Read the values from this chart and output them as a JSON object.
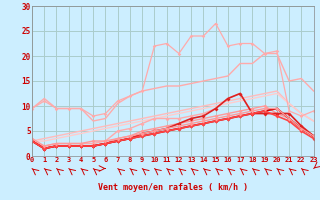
{
  "bg_color": "#cceeff",
  "grid_color": "#aacccc",
  "text_color": "#cc0000",
  "xlabel": "Vent moyen/en rafales ( km/h )",
  "x_values": [
    0,
    1,
    2,
    3,
    4,
    5,
    6,
    7,
    8,
    9,
    10,
    11,
    12,
    13,
    14,
    15,
    16,
    17,
    18,
    19,
    20,
    21,
    22,
    23
  ],
  "ylim": [
    0,
    30
  ],
  "xlim": [
    0,
    23
  ],
  "yticks": [
    0,
    5,
    10,
    15,
    20,
    25,
    30
  ],
  "lines": [
    {
      "color": "#ffaaaa",
      "lw": 1.0,
      "marker": null,
      "values": [
        9.5,
        11.5,
        9.5,
        9.5,
        9.5,
        7.0,
        7.5,
        10.5,
        12.0,
        13.0,
        13.5,
        14.0,
        14.0,
        14.5,
        15.0,
        15.5,
        16.0,
        18.5,
        18.5,
        20.5,
        20.5,
        15.0,
        15.5,
        13.0
      ]
    },
    {
      "color": "#ffbbbb",
      "lw": 1.0,
      "marker": null,
      "values": [
        3.0,
        3.5,
        4.0,
        4.5,
        5.0,
        5.5,
        6.0,
        6.5,
        7.0,
        7.5,
        8.0,
        8.5,
        9.0,
        9.5,
        10.0,
        10.5,
        11.0,
        11.5,
        12.0,
        12.5,
        13.0,
        10.5,
        8.5,
        7.0
      ]
    },
    {
      "color": "#ffcccc",
      "lw": 1.0,
      "marker": null,
      "values": [
        3.0,
        3.0,
        3.5,
        4.0,
        4.5,
        5.0,
        5.5,
        6.0,
        6.5,
        7.0,
        7.5,
        8.0,
        8.5,
        9.0,
        9.5,
        10.0,
        10.5,
        11.0,
        11.5,
        12.0,
        12.5,
        10.5,
        8.5,
        7.0
      ]
    },
    {
      "color": "#ffaaaa",
      "lw": 1.0,
      "marker": "D",
      "ms": 2.0,
      "values": [
        3.0,
        2.0,
        2.5,
        2.5,
        2.5,
        2.5,
        3.0,
        5.0,
        5.5,
        6.5,
        7.5,
        7.5,
        7.5,
        8.0,
        8.5,
        9.5,
        11.5,
        12.5,
        8.5,
        8.5,
        8.5,
        8.5,
        6.0,
        4.0
      ]
    },
    {
      "color": "#ff9999",
      "lw": 1.0,
      "marker": "D",
      "ms": 2.0,
      "values": [
        3.0,
        1.5,
        2.0,
        2.0,
        2.0,
        2.0,
        2.5,
        3.5,
        4.0,
        5.0,
        5.5,
        6.0,
        6.5,
        7.0,
        7.5,
        8.0,
        8.5,
        9.0,
        9.5,
        10.0,
        8.5,
        7.5,
        5.5,
        4.0
      ]
    },
    {
      "color": "#dd2222",
      "lw": 1.2,
      "marker": "D",
      "ms": 2.0,
      "values": [
        3.0,
        1.5,
        2.0,
        2.0,
        2.0,
        2.0,
        2.5,
        3.0,
        3.5,
        4.5,
        5.0,
        5.5,
        6.5,
        7.5,
        8.0,
        9.5,
        11.5,
        12.5,
        8.5,
        8.5,
        8.5,
        8.5,
        6.0,
        4.0
      ]
    },
    {
      "color": "#cc0000",
      "lw": 1.3,
      "marker": "D",
      "ms": 2.0,
      "values": [
        3.0,
        1.5,
        2.0,
        2.0,
        2.0,
        2.0,
        2.5,
        3.0,
        3.5,
        4.0,
        4.5,
        5.0,
        5.5,
        6.0,
        6.5,
        7.0,
        7.5,
        8.0,
        8.5,
        9.0,
        9.5,
        7.5,
        5.5,
        4.0
      ]
    },
    {
      "color": "#ff4444",
      "lw": 1.2,
      "marker": "D",
      "ms": 2.0,
      "values": [
        3.0,
        1.5,
        2.0,
        2.0,
        2.0,
        2.0,
        2.5,
        3.0,
        3.5,
        4.0,
        4.5,
        5.0,
        5.5,
        6.0,
        6.5,
        7.0,
        7.5,
        8.0,
        8.5,
        9.0,
        8.0,
        7.0,
        5.0,
        3.5
      ]
    },
    {
      "color": "#ff9999",
      "lw": 1.0,
      "marker": "D",
      "ms": 2.0,
      "values": [
        3.5,
        2.0,
        2.5,
        2.5,
        2.5,
        3.0,
        3.0,
        3.5,
        4.0,
        4.5,
        5.0,
        5.5,
        6.0,
        6.5,
        7.0,
        7.5,
        8.0,
        8.5,
        9.0,
        9.5,
        9.5,
        7.5,
        5.5,
        4.0
      ]
    },
    {
      "color": "#ffaaaa",
      "lw": 0.9,
      "marker": "D",
      "ms": 1.8,
      "values": [
        9.5,
        11.0,
        9.5,
        9.5,
        9.5,
        8.0,
        8.5,
        11.0,
        12.0,
        13.0,
        22.0,
        22.5,
        20.5,
        24.0,
        24.0,
        26.5,
        22.0,
        22.5,
        22.5,
        20.5,
        21.0,
        9.0,
        8.0,
        9.0
      ]
    }
  ],
  "arrow_angles": [
    225,
    225,
    225,
    225,
    225,
    225,
    90,
    225,
    225,
    225,
    225,
    225,
    225,
    225,
    225,
    225,
    225,
    225,
    225,
    225,
    225,
    225,
    225,
    315
  ]
}
